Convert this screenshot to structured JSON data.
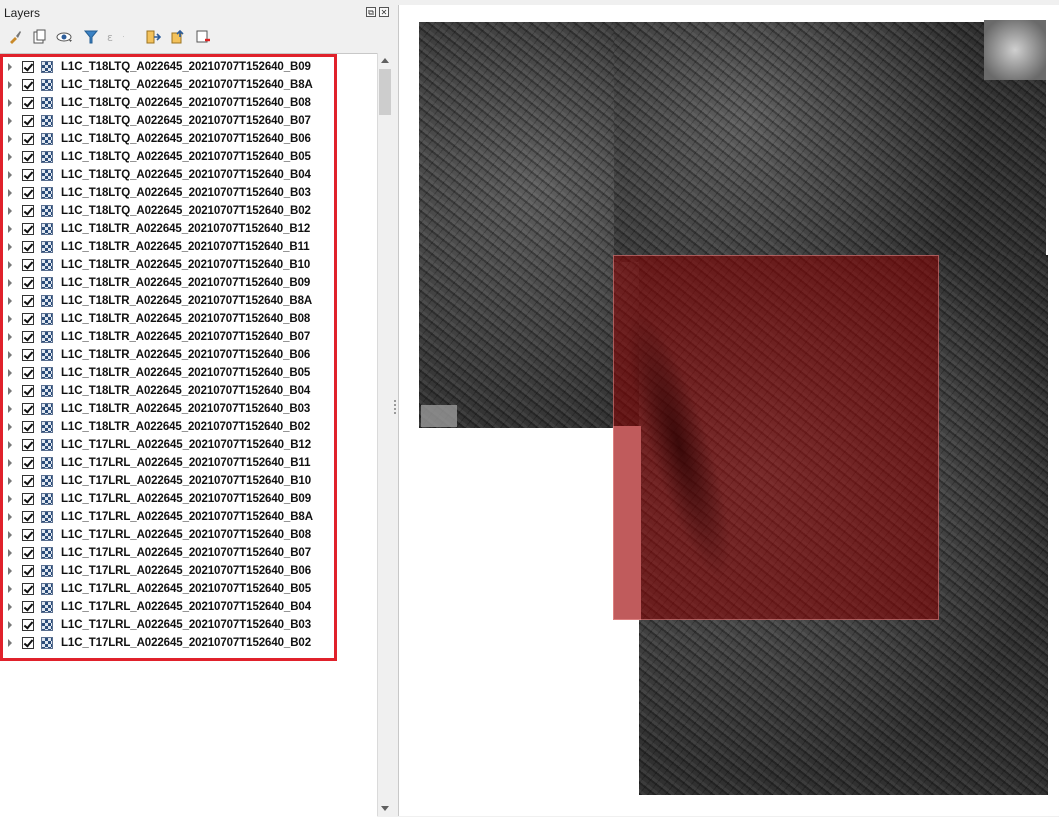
{
  "panel": {
    "title": "Layers",
    "float_glyph": "⧉",
    "close_glyph": "✕"
  },
  "toolbar": {
    "icons": [
      "paintbrush-icon",
      "add-group-icon",
      "eye-icon",
      "filter-icon",
      "filter-expression-icon",
      "expand-all-icon",
      "collapse-all-icon",
      "remove-layer-icon"
    ]
  },
  "layers": [
    "L1C_T18LTQ_A022645_20210707T152640_B09",
    "L1C_T18LTQ_A022645_20210707T152640_B8A",
    "L1C_T18LTQ_A022645_20210707T152640_B08",
    "L1C_T18LTQ_A022645_20210707T152640_B07",
    "L1C_T18LTQ_A022645_20210707T152640_B06",
    "L1C_T18LTQ_A022645_20210707T152640_B05",
    "L1C_T18LTQ_A022645_20210707T152640_B04",
    "L1C_T18LTQ_A022645_20210707T152640_B03",
    "L1C_T18LTQ_A022645_20210707T152640_B02",
    "L1C_T18LTR_A022645_20210707T152640_B12",
    "L1C_T18LTR_A022645_20210707T152640_B11",
    "L1C_T18LTR_A022645_20210707T152640_B10",
    "L1C_T18LTR_A022645_20210707T152640_B09",
    "L1C_T18LTR_A022645_20210707T152640_B8A",
    "L1C_T18LTR_A022645_20210707T152640_B08",
    "L1C_T18LTR_A022645_20210707T152640_B07",
    "L1C_T18LTR_A022645_20210707T152640_B06",
    "L1C_T18LTR_A022645_20210707T152640_B05",
    "L1C_T18LTR_A022645_20210707T152640_B04",
    "L1C_T18LTR_A022645_20210707T152640_B03",
    "L1C_T18LTR_A022645_20210707T152640_B02",
    "L1C_T17LRL_A022645_20210707T152640_B12",
    "L1C_T17LRL_A022645_20210707T152640_B11",
    "L1C_T17LRL_A022645_20210707T152640_B10",
    "L1C_T17LRL_A022645_20210707T152640_B09",
    "L1C_T17LRL_A022645_20210707T152640_B8A",
    "L1C_T17LRL_A022645_20210707T152640_B08",
    "L1C_T17LRL_A022645_20210707T152640_B07",
    "L1C_T17LRL_A022645_20210707T152640_B06",
    "L1C_T17LRL_A022645_20210707T152640_B05",
    "L1C_T17LRL_A022645_20210707T152640_B04",
    "L1C_T17LRL_A022645_20210707T152640_B03",
    "L1C_T17LRL_A022645_20210707T152640_B02"
  ],
  "colors": {
    "highlight": "#e0212b",
    "overlay": "#8c0000",
    "pink_strip": "#ffc9cc"
  }
}
